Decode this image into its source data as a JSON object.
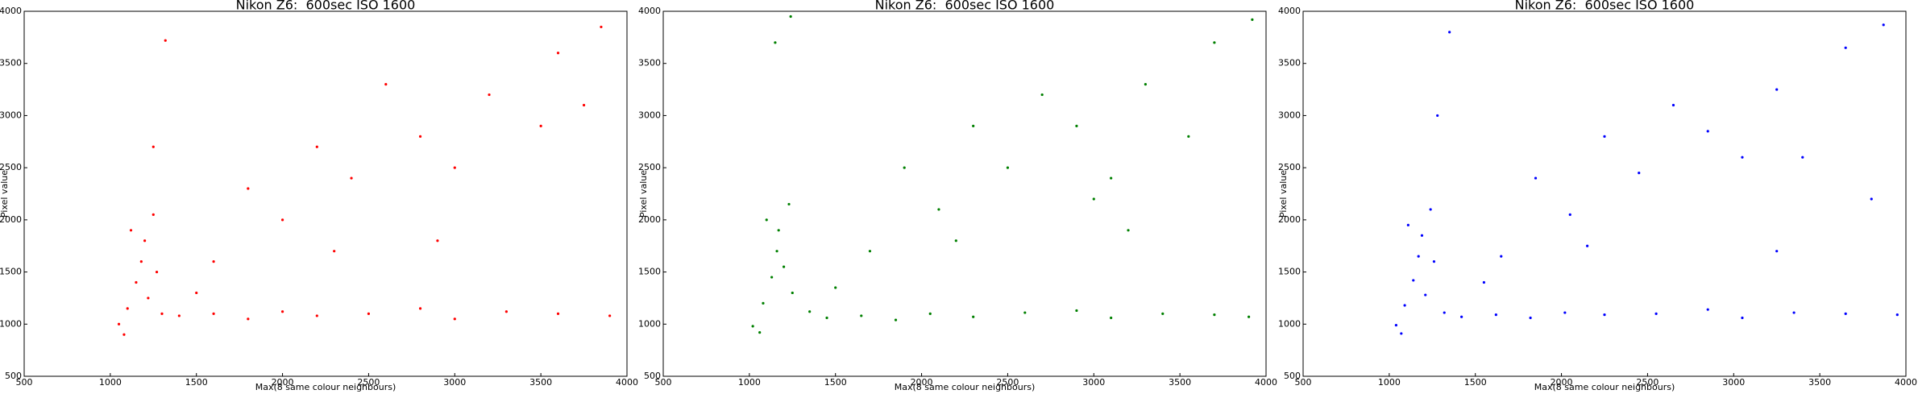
{
  "chart_data": [
    {
      "type": "scatter",
      "title": "Nikon Z6:  600sec ISO 1600",
      "x_label": "Max(8 same colour neighbours)",
      "y_label": "Pixel value",
      "color": "#ff0000",
      "xlim": [
        500,
        4000
      ],
      "ylim": [
        500,
        4000
      ],
      "xticks": [
        500,
        1000,
        1500,
        2000,
        2500,
        3000,
        3500,
        4000
      ],
      "yticks": [
        500,
        1000,
        1500,
        2000,
        2500,
        3000,
        3500,
        4000
      ],
      "x": [
        1050,
        1100,
        1150,
        1200,
        1250,
        1180,
        1220,
        1300,
        1400,
        1600,
        1800,
        2000,
        2200,
        2500,
        2800,
        3000,
        3300,
        3600,
        3900,
        1600,
        2000,
        2400,
        2800,
        3200,
        3600,
        3850,
        2200,
        2600,
        3000,
        1800,
        1250,
        1320,
        2900,
        3500,
        1500,
        1120,
        1080,
        1270,
        3750,
        2300
      ],
      "y": [
        1000,
        1150,
        1400,
        1800,
        2050,
        1600,
        1250,
        1100,
        1080,
        1100,
        1050,
        1120,
        1080,
        1100,
        1150,
        1050,
        1120,
        1100,
        1080,
        1600,
        2000,
        2400,
        2800,
        3200,
        3600,
        3850,
        2700,
        3300,
        2500,
        2300,
        2700,
        3720,
        1800,
        2900,
        1300,
        1900,
        900,
        1500,
        3100,
        1700
      ]
    },
    {
      "type": "scatter",
      "title": "Nikon Z6:  600sec ISO 1600",
      "x_label": "Max(8 same colour neighbours)",
      "y_label": "Pixel value",
      "color": "#008000",
      "xlim": [
        500,
        4000
      ],
      "ylim": [
        500,
        4000
      ],
      "xticks": [
        500,
        1000,
        1500,
        2000,
        2500,
        3000,
        3500,
        4000
      ],
      "yticks": [
        500,
        1000,
        1500,
        2000,
        2500,
        3000,
        3500,
        4000
      ],
      "x": [
        1020,
        1080,
        1130,
        1170,
        1230,
        1160,
        1250,
        1350,
        1450,
        1650,
        1850,
        2050,
        2300,
        2600,
        2900,
        3100,
        3400,
        3700,
        3900,
        1700,
        2100,
        2500,
        2900,
        3300,
        3700,
        3920,
        2300,
        2700,
        3100,
        1900,
        1150,
        1240,
        3200,
        3550,
        1500,
        1100,
        1060,
        1200,
        3000,
        2200
      ],
      "y": [
        980,
        1200,
        1450,
        1900,
        2150,
        1700,
        1300,
        1120,
        1060,
        1080,
        1040,
        1100,
        1070,
        1110,
        1130,
        1060,
        1100,
        1090,
        1070,
        1700,
        2100,
        2500,
        2900,
        3300,
        3700,
        3920,
        2900,
        3200,
        2400,
        2500,
        3700,
        3950,
        1900,
        2800,
        1350,
        2000,
        920,
        1550,
        2200,
        1800
      ]
    },
    {
      "type": "scatter",
      "title": "Nikon Z6:  600sec ISO 1600",
      "x_label": "Max(8 same colour neighbours)",
      "y_label": "Pixel value",
      "color": "#0000ff",
      "xlim": [
        500,
        4000
      ],
      "ylim": [
        500,
        4000
      ],
      "xticks": [
        500,
        1000,
        1500,
        2000,
        2500,
        3000,
        3500,
        4000
      ],
      "yticks": [
        500,
        1000,
        1500,
        2000,
        2500,
        3000,
        3500,
        4000
      ],
      "x": [
        1040,
        1090,
        1140,
        1190,
        1240,
        1170,
        1210,
        1320,
        1420,
        1620,
        1820,
        2020,
        2250,
        2550,
        2850,
        3050,
        3350,
        3650,
        3950,
        1650,
        2050,
        2450,
        2850,
        3250,
        3650,
        3870,
        2250,
        2650,
        3050,
        1850,
        1280,
        1350,
        3250,
        3800,
        1550,
        1110,
        1070,
        1260,
        3400,
        2150
      ],
      "y": [
        990,
        1180,
        1420,
        1850,
        2100,
        1650,
        1280,
        1110,
        1070,
        1090,
        1060,
        1110,
        1090,
        1100,
        1140,
        1060,
        1110,
        1100,
        1090,
        1650,
        2050,
        2450,
        2850,
        3250,
        3650,
        3870,
        2800,
        3100,
        2600,
        2400,
        3000,
        3800,
        1700,
        2200,
        1400,
        1950,
        910,
        1600,
        2600,
        1750
      ]
    }
  ]
}
